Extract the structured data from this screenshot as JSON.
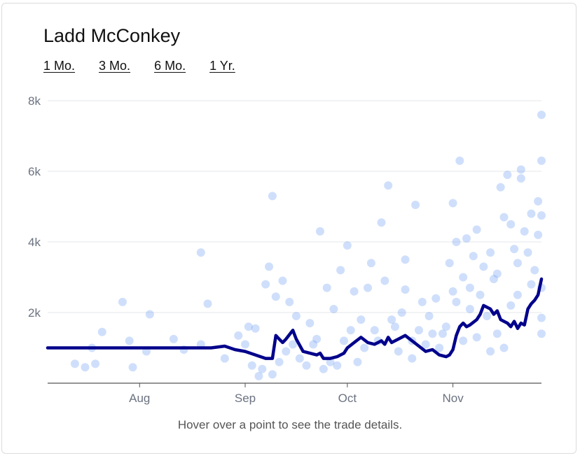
{
  "title": "Ladd McConkey",
  "ranges": [
    "1 Mo.",
    "3 Mo.",
    "6 Mo.",
    "1 Yr."
  ],
  "hint": "Hover over a point to see the trade details.",
  "colors": {
    "line": "#00008b",
    "points": "#6b9bf2",
    "grid": "#e5e7eb",
    "axis": "#555555"
  },
  "chart_data": {
    "type": "scatter",
    "x_axis": {
      "type": "date",
      "ticks": [
        "Aug",
        "Sep",
        "Oct",
        "Nov"
      ],
      "tick_dates": [
        "2024-08-01",
        "2024-09-01",
        "2024-10-01",
        "2024-11-01"
      ],
      "range": [
        "2024-07-05",
        "2024-11-27"
      ]
    },
    "y_axis": {
      "ticks": [
        "8k",
        "6k",
        "4k",
        "2k"
      ],
      "tick_values": [
        8000,
        6000,
        4000,
        2000
      ],
      "range": [
        0,
        8000
      ]
    },
    "grid": true,
    "series": [
      {
        "type": "line",
        "points": [
          [
            "2024-07-05",
            1000
          ],
          [
            "2024-08-10",
            1000
          ],
          [
            "2024-08-22",
            1000
          ],
          [
            "2024-08-26",
            1050
          ],
          [
            "2024-08-29",
            950
          ],
          [
            "2024-09-01",
            900
          ],
          [
            "2024-09-04",
            800
          ],
          [
            "2024-09-07",
            700
          ],
          [
            "2024-09-09",
            700
          ],
          [
            "2024-09-10",
            1350
          ],
          [
            "2024-09-11",
            1250
          ],
          [
            "2024-09-12",
            1150
          ],
          [
            "2024-09-13",
            1250
          ],
          [
            "2024-09-15",
            1500
          ],
          [
            "2024-09-16",
            1250
          ],
          [
            "2024-09-18",
            900
          ],
          [
            "2024-09-20",
            850
          ],
          [
            "2024-09-22",
            800
          ],
          [
            "2024-09-23",
            850
          ],
          [
            "2024-09-24",
            700
          ],
          [
            "2024-09-26",
            700
          ],
          [
            "2024-09-28",
            750
          ],
          [
            "2024-09-30",
            850
          ],
          [
            "2024-10-01",
            1000
          ],
          [
            "2024-10-03",
            1150
          ],
          [
            "2024-10-05",
            1300
          ],
          [
            "2024-10-07",
            1150
          ],
          [
            "2024-10-09",
            1100
          ],
          [
            "2024-10-11",
            1200
          ],
          [
            "2024-10-12",
            1100
          ],
          [
            "2024-10-13",
            1300
          ],
          [
            "2024-10-14",
            1150
          ],
          [
            "2024-10-16",
            1250
          ],
          [
            "2024-10-18",
            1350
          ],
          [
            "2024-10-20",
            1200
          ],
          [
            "2024-10-22",
            1050
          ],
          [
            "2024-10-24",
            900
          ],
          [
            "2024-10-26",
            950
          ],
          [
            "2024-10-28",
            800
          ],
          [
            "2024-10-30",
            750
          ],
          [
            "2024-10-31",
            800
          ],
          [
            "2024-11-01",
            950
          ],
          [
            "2024-11-02",
            1350
          ],
          [
            "2024-11-03",
            1600
          ],
          [
            "2024-11-04",
            1700
          ],
          [
            "2024-11-05",
            1600
          ],
          [
            "2024-11-06",
            1650
          ],
          [
            "2024-11-08",
            1800
          ],
          [
            "2024-11-09",
            1950
          ],
          [
            "2024-11-10",
            2200
          ],
          [
            "2024-11-12",
            2100
          ],
          [
            "2024-11-13",
            1950
          ],
          [
            "2024-11-14",
            2050
          ],
          [
            "2024-11-15",
            1800
          ],
          [
            "2024-11-16",
            1750
          ],
          [
            "2024-11-17",
            1700
          ],
          [
            "2024-11-18",
            1600
          ],
          [
            "2024-11-19",
            1750
          ],
          [
            "2024-11-20",
            1550
          ],
          [
            "2024-11-21",
            1700
          ],
          [
            "2024-11-22",
            1650
          ],
          [
            "2024-11-23",
            2100
          ],
          [
            "2024-11-24",
            2250
          ],
          [
            "2024-11-25",
            2350
          ],
          [
            "2024-11-26",
            2500
          ],
          [
            "2024-11-27",
            2950
          ]
        ]
      },
      {
        "type": "scatter",
        "points": [
          [
            "2024-07-13",
            550
          ],
          [
            "2024-07-16",
            450
          ],
          [
            "2024-07-18",
            1000
          ],
          [
            "2024-07-19",
            550
          ],
          [
            "2024-07-21",
            1450
          ],
          [
            "2024-07-27",
            2300
          ],
          [
            "2024-07-29",
            1200
          ],
          [
            "2024-07-30",
            450
          ],
          [
            "2024-08-03",
            900
          ],
          [
            "2024-08-04",
            1950
          ],
          [
            "2024-08-11",
            1250
          ],
          [
            "2024-08-14",
            950
          ],
          [
            "2024-08-19",
            1100
          ],
          [
            "2024-08-19",
            3700
          ],
          [
            "2024-08-21",
            2250
          ],
          [
            "2024-08-26",
            700
          ],
          [
            "2024-08-30",
            1350
          ],
          [
            "2024-09-02",
            1600
          ],
          [
            "2024-09-04",
            1550
          ],
          [
            "2024-09-05",
            200
          ],
          [
            "2024-09-07",
            2800
          ],
          [
            "2024-09-08",
            3300
          ],
          [
            "2024-09-09",
            5300
          ],
          [
            "2024-09-10",
            2450
          ],
          [
            "2024-09-12",
            2900
          ],
          [
            "2024-09-14",
            2300
          ],
          [
            "2024-09-16",
            1900
          ],
          [
            "2024-09-20",
            1700
          ],
          [
            "2024-09-22",
            1250
          ],
          [
            "2024-09-23",
            4300
          ],
          [
            "2024-09-25",
            2700
          ],
          [
            "2024-09-27",
            2100
          ],
          [
            "2024-09-29",
            3200
          ],
          [
            "2024-10-01",
            3900
          ],
          [
            "2024-10-03",
            2600
          ],
          [
            "2024-10-05",
            1800
          ],
          [
            "2024-10-07",
            2700
          ],
          [
            "2024-10-08",
            3400
          ],
          [
            "2024-10-09",
            1500
          ],
          [
            "2024-10-11",
            4550
          ],
          [
            "2024-10-12",
            2900
          ],
          [
            "2024-10-13",
            5600
          ],
          [
            "2024-10-15",
            1600
          ],
          [
            "2024-10-17",
            2000
          ],
          [
            "2024-10-18",
            2650
          ],
          [
            "2024-10-18",
            3500
          ],
          [
            "2024-10-20",
            700
          ],
          [
            "2024-10-21",
            5050
          ],
          [
            "2024-10-23",
            2300
          ],
          [
            "2024-10-25",
            1900
          ],
          [
            "2024-10-27",
            2400
          ],
          [
            "2024-10-29",
            1400
          ],
          [
            "2024-10-31",
            3400
          ],
          [
            "2024-11-01",
            2600
          ],
          [
            "2024-11-01",
            5100
          ],
          [
            "2024-11-02",
            4000
          ],
          [
            "2024-11-03",
            6300
          ],
          [
            "2024-11-04",
            3000
          ],
          [
            "2024-11-05",
            4100
          ],
          [
            "2024-11-06",
            2700
          ],
          [
            "2024-11-07",
            3600
          ],
          [
            "2024-11-08",
            4350
          ],
          [
            "2024-11-09",
            2500
          ],
          [
            "2024-11-10",
            3300
          ],
          [
            "2024-11-11",
            1900
          ],
          [
            "2024-11-12",
            3700
          ],
          [
            "2024-11-13",
            2950
          ],
          [
            "2024-11-14",
            3100
          ],
          [
            "2024-11-15",
            5550
          ],
          [
            "2024-11-16",
            4700
          ],
          [
            "2024-11-17",
            5900
          ],
          [
            "2024-11-18",
            4500
          ],
          [
            "2024-11-19",
            3800
          ],
          [
            "2024-11-20",
            3400
          ],
          [
            "2024-11-21",
            6050
          ],
          [
            "2024-11-21",
            5800
          ],
          [
            "2024-11-22",
            4300
          ],
          [
            "2024-11-23",
            3700
          ],
          [
            "2024-11-24",
            4800
          ],
          [
            "2024-11-25",
            3200
          ],
          [
            "2024-11-26",
            5150
          ],
          [
            "2024-11-26",
            4200
          ],
          [
            "2024-11-27",
            6300
          ],
          [
            "2024-11-27",
            7600
          ],
          [
            "2024-11-27",
            4750
          ],
          [
            "2024-11-27",
            1850
          ],
          [
            "2024-11-27",
            1400
          ],
          [
            "2024-11-27",
            2700
          ],
          [
            "2024-11-24",
            2800
          ],
          [
            "2024-11-20",
            2500
          ],
          [
            "2024-11-18",
            2200
          ],
          [
            "2024-11-16",
            1000
          ],
          [
            "2024-11-14",
            1400
          ],
          [
            "2024-11-12",
            900
          ],
          [
            "2024-11-08",
            1300
          ],
          [
            "2024-11-06",
            2100
          ],
          [
            "2024-11-04",
            1200
          ],
          [
            "2024-11-02",
            2300
          ],
          [
            "2024-10-30",
            1600
          ],
          [
            "2024-10-28",
            1000
          ],
          [
            "2024-10-26",
            1400
          ],
          [
            "2024-10-24",
            1100
          ],
          [
            "2024-10-22",
            1500
          ],
          [
            "2024-10-20",
            1200
          ],
          [
            "2024-10-16",
            900
          ],
          [
            "2024-10-14",
            1800
          ],
          [
            "2024-10-10",
            1200
          ],
          [
            "2024-10-06",
            1000
          ],
          [
            "2024-10-04",
            600
          ],
          [
            "2024-10-02",
            1500
          ],
          [
            "2024-09-30",
            1200
          ],
          [
            "2024-09-28",
            500
          ],
          [
            "2024-09-26",
            600
          ],
          [
            "2024-09-24",
            400
          ],
          [
            "2024-09-21",
            1100
          ],
          [
            "2024-09-19",
            500
          ],
          [
            "2024-09-17",
            700
          ],
          [
            "2024-09-15",
            1100
          ],
          [
            "2024-09-13",
            900
          ],
          [
            "2024-09-11",
            600
          ],
          [
            "2024-09-09",
            250
          ],
          [
            "2024-09-06",
            400
          ],
          [
            "2024-09-03",
            500
          ],
          [
            "2024-09-01",
            1100
          ]
        ]
      }
    ]
  }
}
